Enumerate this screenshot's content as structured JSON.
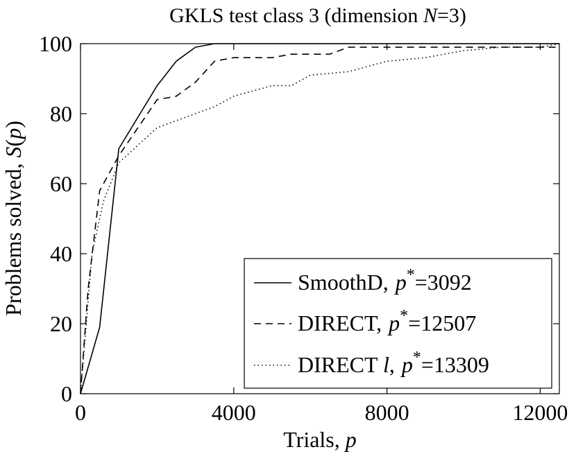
{
  "chart_data": {
    "type": "line",
    "title": {
      "prefix": "GKLS test class 3 (dimension ",
      "var": "N",
      "suffix": "=3)"
    },
    "xlabel": {
      "text": "Trials, ",
      "var": "p"
    },
    "ylabel": {
      "text": "Problems solved, ",
      "func": "S",
      "open": "(",
      "var": "p",
      "close": ")"
    },
    "xlim": [
      0,
      12500
    ],
    "ylim": [
      0,
      100
    ],
    "xticks": [
      0,
      4000,
      8000,
      12000
    ],
    "yticks": [
      0,
      20,
      40,
      60,
      80,
      100
    ],
    "xtick_labels": [
      "0",
      "4000",
      "8000",
      "12000"
    ],
    "ytick_labels": [
      "0",
      "20",
      "40",
      "60",
      "80",
      "100"
    ],
    "grid": false,
    "legend_position": "bottom-right",
    "series": [
      {
        "name": "SmoothD",
        "label": {
          "name": "SmoothD,",
          "var": "p",
          "sup": "*",
          "value": "=3092"
        },
        "style": "solid",
        "color": "#000000",
        "x": [
          0,
          500,
          1000,
          1500,
          2000,
          2500,
          3000,
          3500,
          4000,
          12500
        ],
        "y": [
          0,
          19,
          70,
          79,
          88,
          95,
          99,
          100,
          100,
          100
        ]
      },
      {
        "name": "DIRECT",
        "label": {
          "name": "DIRECT,",
          "var": "p",
          "sup": "*",
          "value": "=12507"
        },
        "style": "dashed",
        "color": "#000000",
        "x": [
          0,
          200,
          500,
          1000,
          1500,
          2000,
          2500,
          3000,
          3500,
          4000,
          5000,
          5500,
          6500,
          7000,
          8000,
          12500
        ],
        "y": [
          0,
          30,
          58,
          68,
          76,
          84,
          85,
          89,
          95,
          96,
          96,
          97,
          97,
          99,
          99,
          99
        ]
      },
      {
        "name": "DIRECT l",
        "label": {
          "name": "DIRECT ",
          "ital": "l",
          "comma": ",",
          "var": "p",
          "sup": "*",
          "value": "=13309"
        },
        "style": "dotted",
        "color": "#000000",
        "x": [
          0,
          300,
          600,
          1000,
          1500,
          2000,
          2500,
          3000,
          3500,
          4000,
          5000,
          5500,
          6000,
          7000,
          8000,
          9000,
          10000,
          11000,
          12000,
          12500
        ],
        "y": [
          0,
          40,
          55,
          66,
          71,
          76,
          78,
          80,
          82,
          85,
          88,
          88,
          91,
          92,
          95,
          96,
          98,
          99,
          99,
          100
        ]
      }
    ]
  }
}
